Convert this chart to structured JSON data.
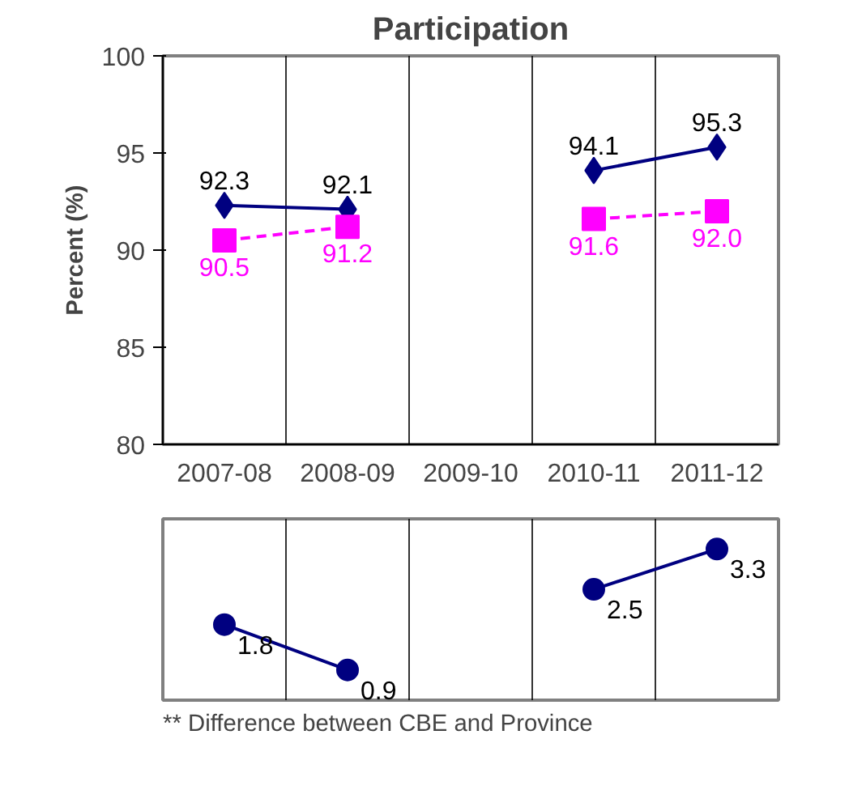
{
  "chart_data": [
    {
      "type": "line",
      "title": "Participation",
      "ylabel": "Percent (%)",
      "categories": [
        "2007-08",
        "2008-09",
        "2009-10",
        "2010-11",
        "2011-12"
      ],
      "series": [
        {
          "color": "#000080",
          "values": [
            92.3,
            92.1,
            null,
            94.1,
            95.3
          ],
          "marker": "diamond",
          "line_style": "solid"
        },
        {
          "color": "#ff00ff",
          "values": [
            90.5,
            91.2,
            null,
            91.6,
            92.0
          ],
          "value_labels": [
            "90.5",
            "91.2",
            null,
            "91.6",
            "92.0"
          ],
          "marker": "square",
          "line_style": "dashed"
        }
      ],
      "ylim": [
        80,
        100
      ],
      "yticks": [
        80,
        85,
        90,
        95,
        100
      ],
      "grid": "x",
      "data_labels": true
    },
    {
      "type": "line",
      "categories": [
        null,
        null,
        null,
        null,
        null
      ],
      "series": [
        {
          "color": "#000080",
          "values": [
            1.8,
            0.9,
            null,
            2.5,
            3.3
          ],
          "marker": "circle",
          "line_style": "solid"
        }
      ],
      "grid": "x",
      "tick_labels": false,
      "data_labels": true,
      "annotations": [
        "** Difference between CBE and Province"
      ]
    }
  ]
}
